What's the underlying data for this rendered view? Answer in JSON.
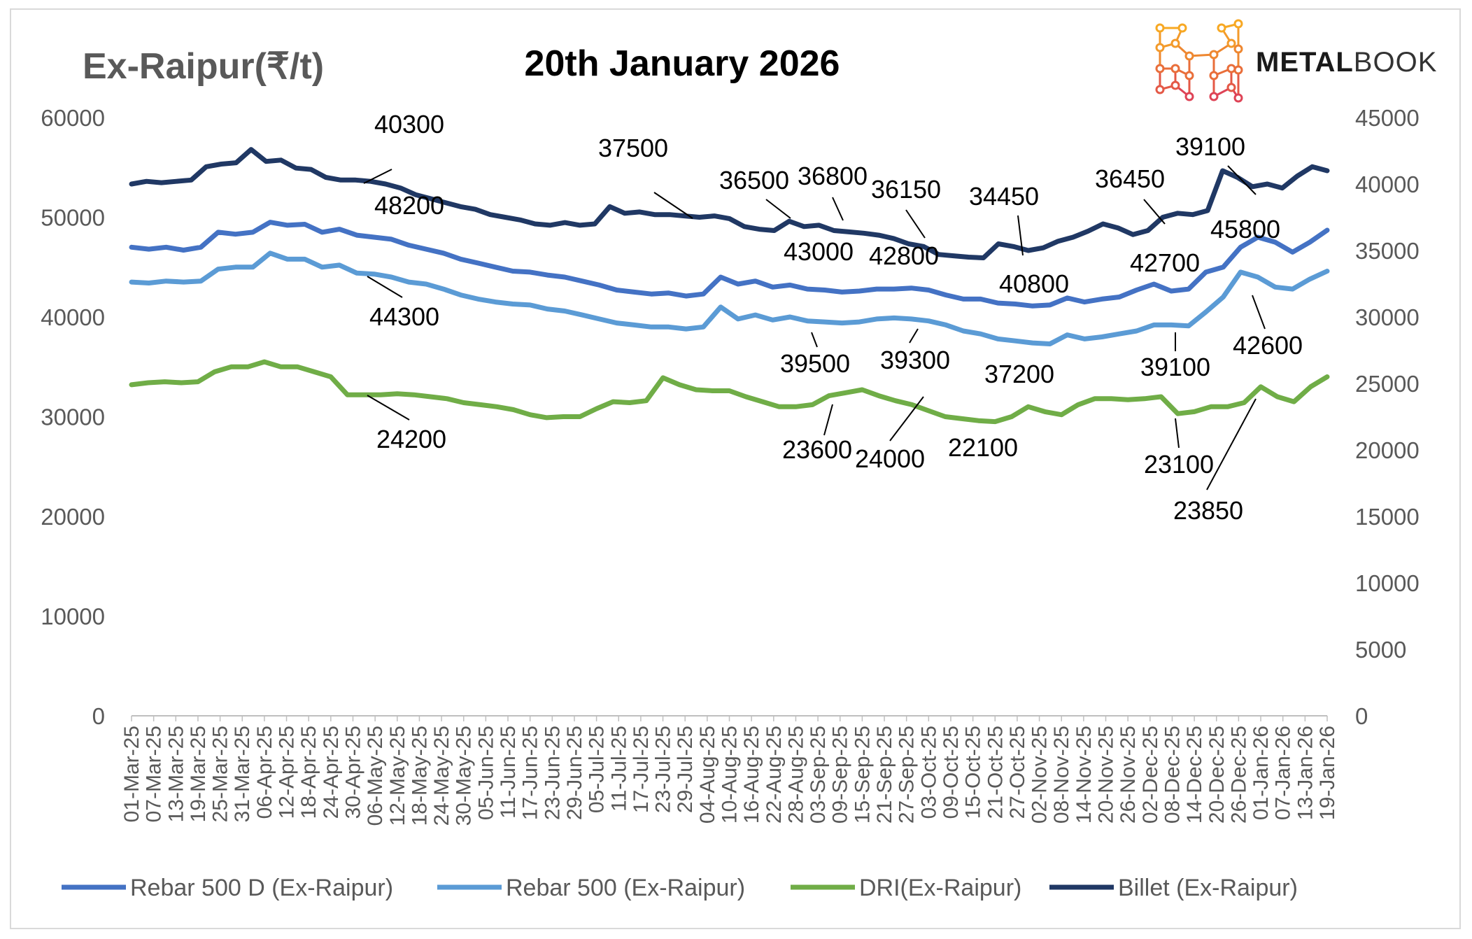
{
  "brand": {
    "name_bold": "METAL",
    "name_light": "BOOK",
    "color_bold": "#1a1a1a",
    "color_light": "#333333"
  },
  "chart_data": {
    "type": "line",
    "title": "20th January 2026",
    "y_left_label": "Ex-Raipur(₹/t)",
    "ylim_left": [
      0,
      60000
    ],
    "ylim_right": [
      0,
      45000
    ],
    "yticks_left": [
      "0",
      "10000",
      "20000",
      "30000",
      "40000",
      "50000",
      "60000"
    ],
    "yticks_right": [
      "0",
      "5000",
      "10000",
      "15000",
      "20000",
      "25000",
      "30000",
      "35000",
      "40000",
      "45000"
    ],
    "x_tick_labels": [
      "01-Mar-25",
      "07-Mar-25",
      "13-Mar-25",
      "19-Mar-25",
      "25-Mar-25",
      "31-Mar-25",
      "06-Apr-25",
      "12-Apr-25",
      "18-Apr-25",
      "24-Apr-25",
      "30-Apr-25",
      "06-May-25",
      "12-May-25",
      "18-May-25",
      "24-May-25",
      "30-May-25",
      "05-Jun-25",
      "11-Jun-25",
      "17-Jun-25",
      "23-Jun-25",
      "29-Jun-25",
      "05-Jul-25",
      "11-Jul-25",
      "17-Jul-25",
      "23-Jul-25",
      "29-Jul-25",
      "04-Aug-25",
      "10-Aug-25",
      "16-Aug-25",
      "22-Aug-25",
      "28-Aug-25",
      "03-Sep-25",
      "09-Sep-25",
      "15-Sep-25",
      "21-Sep-25",
      "27-Sep-25",
      "03-Oct-25",
      "09-Oct-25",
      "15-Oct-25",
      "21-Oct-25",
      "27-Oct-25",
      "02-Nov-25",
      "08-Nov-25",
      "14-Nov-25",
      "20-Nov-25",
      "26-Nov-25",
      "02-Dec-25",
      "08-Dec-25",
      "14-Dec-25",
      "20-Dec-25",
      "26-Dec-25",
      "01-Jan-26",
      "07-Jan-26",
      "13-Jan-26",
      "19-Jan-26"
    ],
    "series": [
      {
        "name": "Rebar 500 D (Ex-Raipur)",
        "axis": "left",
        "color": "#4472C4",
        "values": [
          47000,
          46800,
          47000,
          46700,
          47000,
          48500,
          48300,
          48500,
          49500,
          49200,
          49300,
          48500,
          48800,
          48200,
          48000,
          47800,
          47200,
          46800,
          46400,
          45800,
          45400,
          45000,
          44600,
          44500,
          44200,
          44000,
          43600,
          43200,
          42700,
          42500,
          42300,
          42400,
          42100,
          42300,
          44000,
          43300,
          43600,
          43000,
          43200,
          42800,
          42700,
          42500,
          42600,
          42800,
          42800,
          42900,
          42700,
          42200,
          41800,
          41800,
          41400,
          41300,
          41100,
          41200,
          41900,
          41500,
          41800,
          42000,
          42700,
          43300,
          42600,
          42800,
          44500,
          45000,
          47000,
          48000,
          47500,
          46500,
          47500,
          48700
        ]
      },
      {
        "name": "Rebar 500 (Ex-Raipur)",
        "axis": "left",
        "color": "#5B9BD5",
        "values": [
          43500,
          43400,
          43600,
          43500,
          43600,
          44800,
          45000,
          45000,
          46400,
          45800,
          45800,
          45000,
          45200,
          44400,
          44300,
          44000,
          43500,
          43300,
          42800,
          42200,
          41800,
          41500,
          41300,
          41200,
          40800,
          40600,
          40200,
          39800,
          39400,
          39200,
          39000,
          39000,
          38800,
          39000,
          41000,
          39800,
          40200,
          39700,
          40000,
          39600,
          39500,
          39400,
          39500,
          39800,
          39900,
          39800,
          39600,
          39200,
          38600,
          38300,
          37800,
          37600,
          37400,
          37300,
          38200,
          37800,
          38000,
          38300,
          38600,
          39200,
          39200,
          39100,
          40500,
          42000,
          44500,
          44000,
          43000,
          42800,
          43800,
          44600
        ]
      },
      {
        "name": "DRI(Ex-Raipur)",
        "axis": "left",
        "color": "#70AD47",
        "values": [
          33200,
          33400,
          33500,
          33400,
          33500,
          34500,
          35000,
          35000,
          35500,
          35000,
          35000,
          34500,
          34000,
          32200,
          32200,
          32200,
          32300,
          32200,
          32000,
          31800,
          31400,
          31200,
          31000,
          30700,
          30200,
          29900,
          30000,
          30000,
          30800,
          31500,
          31400,
          31600,
          33900,
          33200,
          32700,
          32600,
          32600,
          32000,
          31500,
          31000,
          31000,
          31200,
          32100,
          32400,
          32700,
          32100,
          31600,
          31200,
          30600,
          30000,
          29800,
          29600,
          29500,
          30000,
          31000,
          30500,
          30200,
          31200,
          31800,
          31800,
          31700,
          31800,
          32000,
          30300,
          30500,
          31000,
          31000,
          31400,
          33000,
          32000,
          31500,
          33000,
          34000
        ]
      },
      {
        "name": "Billet (Ex-Raipur)",
        "axis": "right",
        "color": "#203864",
        "values": [
          40000,
          40200,
          40100,
          40200,
          40300,
          41300,
          41500,
          41600,
          42600,
          41700,
          41800,
          41200,
          41100,
          40500,
          40300,
          40300,
          40200,
          40000,
          39700,
          39200,
          38900,
          38600,
          38300,
          38100,
          37700,
          37500,
          37300,
          37000,
          36900,
          37100,
          36900,
          37000,
          38300,
          37800,
          37900,
          37700,
          37700,
          37600,
          37500,
          37600,
          37400,
          36800,
          36600,
          36500,
          37200,
          36800,
          36900,
          36500,
          36400,
          36300,
          36150,
          35900,
          35500,
          35300,
          34700,
          34600,
          34500,
          34450,
          35500,
          35300,
          35000,
          35200,
          35700,
          36000,
          36450,
          37000,
          36700,
          36200,
          36500,
          37500,
          37800,
          37700,
          38000,
          41000,
          40500,
          39800,
          40000,
          39700,
          40600,
          41300,
          41000
        ]
      }
    ],
    "annotations": [
      "40300",
      "37500",
      "36500",
      "36800",
      "36150",
      "34450",
      "36450",
      "39100",
      "48200",
      "43000",
      "42800",
      "40800",
      "42700",
      "45800",
      "44300",
      "39500",
      "39300",
      "37200",
      "39100",
      "42600",
      "24200",
      "23600",
      "24000",
      "22100",
      "23100",
      "23850"
    ]
  }
}
